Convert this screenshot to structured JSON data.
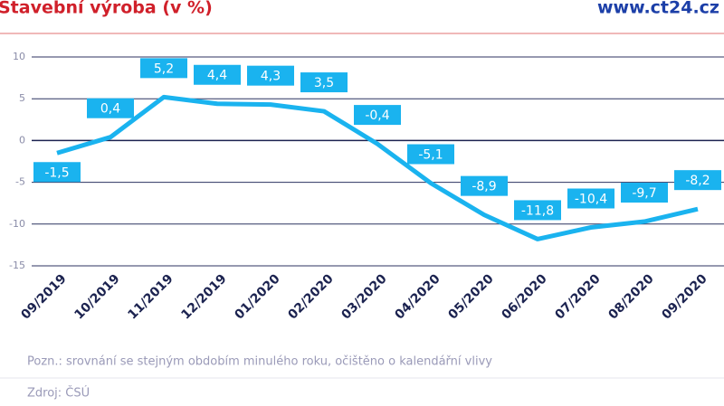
{
  "chart_data": {
    "type": "line",
    "title": "Stavební výroba (v %)",
    "brand": "www.ct24.cz",
    "note": "Pozn.: srovnání se stejným obdobím minulého roku, očištěno o kalendářní vlivy",
    "source": "Zdroj: ČSÚ",
    "categories": [
      "09/2019",
      "10/2019",
      "11/2019",
      "12/2019",
      "01/2020",
      "02/2020",
      "03/2020",
      "04/2020",
      "05/2020",
      "06/2020",
      "07/2020",
      "08/2020",
      "09/2020"
    ],
    "series": [
      {
        "color": "#1ab3ef",
        "values": [
          -1.5,
          0.4,
          5.2,
          4.4,
          4.3,
          3.5,
          -0.4,
          -5.1,
          -8.9,
          -11.8,
          -10.4,
          -9.7,
          -8.2
        ],
        "value_labels": [
          "-1,5",
          "0,4",
          "5,2",
          "4,4",
          "4,3",
          "3,5",
          "-0,4",
          "-5,1",
          "-8,9",
          "-11,8",
          "-10,4",
          "-9,7",
          "-8,2"
        ]
      }
    ],
    "ylim": [
      -15,
      10
    ],
    "yticks": [
      10,
      5,
      0,
      -5,
      -10,
      -15
    ],
    "grid": true
  }
}
